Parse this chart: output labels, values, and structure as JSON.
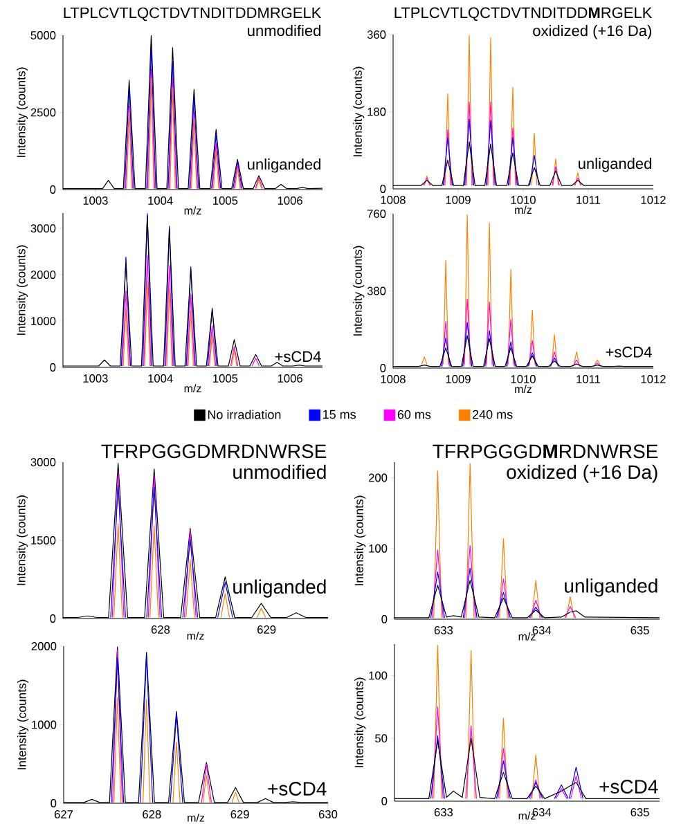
{
  "chart_data": [
    {
      "type": "line",
      "title": "LTPLCVTLQCTDVTNDITDDMRGELK",
      "subtitle": "unmodified",
      "xlabel": "m/z",
      "ylabel": "Intensity (counts)",
      "annotations": [
        "unliganded"
      ],
      "x": [
        1002.5,
        1003.11,
        1003.2,
        1003.29,
        1003.43,
        1003.52,
        1003.61,
        1003.77,
        1003.86,
        1003.95,
        1004.1,
        1004.19,
        1004.28,
        1004.43,
        1004.52,
        1004.61,
        1004.77,
        1004.86,
        1004.95,
        1005.1,
        1005.19,
        1005.28,
        1005.43,
        1005.52,
        1005.61,
        1005.77,
        1005.86,
        1005.95,
        1006.1,
        1006.19,
        1006.28,
        1006.5
      ],
      "series": [
        {
          "color": "#000000",
          "values": [
            30,
            30,
            300,
            30,
            30,
            3550,
            30,
            30,
            5000,
            30,
            30,
            4600,
            30,
            30,
            3250,
            30,
            30,
            1950,
            30,
            30,
            980,
            30,
            30,
            450,
            30,
            30,
            170,
            30,
            30,
            70,
            30,
            40
          ]
        },
        {
          "color": "#0000ff",
          "x": [
            1003.45,
            1003.52,
            1003.59,
            1003.69,
            1003.79,
            1003.86,
            1003.93,
            1004.02,
            1004.12,
            1004.19,
            1004.26,
            1004.35,
            1004.45,
            1004.52,
            1004.59,
            1004.69,
            1004.79,
            1004.86,
            1004.93,
            1005.02,
            1005.12,
            1005.19,
            1005.26
          ],
          "values": [
            30,
            3300,
            30,
            null,
            30,
            4600,
            30,
            null,
            30,
            4150,
            30,
            null,
            30,
            3000,
            30,
            null,
            30,
            1800,
            30,
            null,
            30,
            900,
            30
          ]
        },
        {
          "color": "#ff00ff",
          "x": [
            1003.465,
            1003.52,
            1003.575,
            1003.69,
            1003.805,
            1003.86,
            1003.915,
            1004.02,
            1004.135,
            1004.19,
            1004.245,
            1004.35,
            1004.465,
            1004.52,
            1004.575,
            1004.69,
            1004.805,
            1004.86,
            1004.915,
            1005.02,
            1005.135,
            1005.19,
            1005.245,
            1005.35,
            1005.465,
            1005.52,
            1005.575
          ],
          "values": [
            30,
            2700,
            30,
            null,
            30,
            3900,
            30,
            null,
            30,
            3600,
            30,
            null,
            30,
            2500,
            30,
            null,
            30,
            1500,
            30,
            null,
            30,
            800,
            30,
            null,
            30,
            380,
            30
          ]
        },
        {
          "color": "#ff8000",
          "x": [
            1003.48,
            1003.52,
            1003.56,
            1003.69,
            1003.82,
            1003.86,
            1003.9,
            1004.02,
            1004.15,
            1004.19,
            1004.23,
            1004.35,
            1004.48,
            1004.52,
            1004.56,
            1004.69,
            1004.82,
            1004.86,
            1004.9,
            1005.02,
            1005.15,
            1005.19,
            1005.23,
            1005.35,
            1005.48,
            1005.52,
            1005.56
          ],
          "values": [
            30,
            2500,
            30,
            null,
            30,
            3600,
            30,
            null,
            30,
            3300,
            30,
            null,
            30,
            2300,
            30,
            null,
            30,
            1300,
            30,
            null,
            30,
            700,
            30,
            null,
            30,
            330,
            30
          ]
        }
      ],
      "xlim": [
        1002.5,
        1006.5
      ],
      "ylim": [
        0,
        5000
      ],
      "xticks": [
        1003,
        1004,
        1005,
        1006
      ],
      "yticks": [
        0,
        2500,
        5000
      ]
    },
    {
      "type": "line",
      "title": "LTPLCVTLQCTDVTNDITDD**M**RGELK",
      "subtitle": "oxidized (+16 Da)",
      "xlabel": "m/z",
      "ylabel": "Intensity (counts)",
      "annotations": [
        "unliganded"
      ],
      "x": [
        1008,
        1008.43,
        1008.52,
        1008.61,
        1008.75,
        1008.84,
        1008.93,
        1009.08,
        1009.17,
        1009.26,
        1009.41,
        1009.5,
        1009.59,
        1009.75,
        1009.84,
        1009.93,
        1010.08,
        1010.17,
        1010.26,
        1010.41,
        1010.5,
        1010.59,
        1010.75,
        1010.84,
        1010.93,
        1012
      ],
      "series": [
        {
          "color": "#000000",
          "values": [
            8,
            8,
            20,
            8,
            8,
            67,
            8,
            8,
            110,
            8,
            8,
            105,
            8,
            8,
            84,
            8,
            8,
            50,
            8,
            8,
            42,
            8,
            8,
            20,
            8,
            8
          ]
        },
        {
          "color": "#0000ff",
          "x": [
            1008.77,
            1008.84,
            1008.91,
            1009.0,
            1009.1,
            1009.17,
            1009.24,
            1009.33,
            1009.43,
            1009.5,
            1009.57,
            1009.67,
            1009.77,
            1009.84,
            1009.91,
            1010.0,
            1010.1,
            1010.17,
            1010.24
          ],
          "values": [
            8,
            120,
            8,
            null,
            8,
            163,
            8,
            null,
            8,
            160,
            8,
            null,
            8,
            120,
            8,
            null,
            8,
            78,
            8
          ]
        },
        {
          "color": "#ff00ff",
          "x": [
            1008.465,
            1008.52,
            1008.575,
            1008.68,
            1008.785,
            1008.84,
            1008.895,
            1009.0,
            1009.115,
            1009.17,
            1009.225,
            1009.33,
            1009.445,
            1009.5,
            1009.555,
            1009.67,
            1009.785,
            1009.84,
            1009.895,
            1010.0,
            1010.445,
            1010.5,
            1010.555,
            1010.67,
            1010.785,
            1010.84,
            1010.895
          ],
          "values": [
            8,
            25,
            8,
            null,
            8,
            138,
            8,
            null,
            8,
            203,
            8,
            null,
            8,
            203,
            8,
            null,
            8,
            142,
            8,
            null,
            8,
            52,
            8,
            null,
            8,
            25,
            8
          ]
        },
        {
          "color": "#ff8000",
          "x": [
            1008.48,
            1008.52,
            1008.56,
            1008.68,
            1008.8,
            1008.84,
            1008.88,
            1009.0,
            1009.13,
            1009.17,
            1009.21,
            1009.33,
            1009.46,
            1009.5,
            1009.54,
            1009.67,
            1009.8,
            1009.84,
            1009.88,
            1010.0,
            1010.13,
            1010.17,
            1010.21,
            1010.33,
            1010.46,
            1010.5,
            1010.54,
            1010.67,
            1010.8,
            1010.84,
            1010.88
          ],
          "values": [
            8,
            30,
            8,
            null,
            8,
            222,
            8,
            null,
            8,
            358,
            8,
            null,
            8,
            352,
            8,
            null,
            8,
            237,
            8,
            null,
            8,
            130,
            8,
            null,
            8,
            70,
            8,
            null,
            8,
            38,
            8
          ]
        }
      ],
      "xlim": [
        1008,
        1012
      ],
      "ylim": [
        0,
        360
      ],
      "xticks": [
        1008,
        1009,
        1010,
        1011,
        1012
      ],
      "yticks": [
        0,
        180,
        360
      ]
    },
    {
      "type": "line",
      "xlabel": "m/z",
      "ylabel": "Intensity (counts)",
      "annotations": [
        "+sCD4"
      ],
      "legend": "bottom",
      "x": [
        1002.5,
        1003.05,
        1003.14,
        1003.23,
        1003.38,
        1003.47,
        1003.56,
        1003.71,
        1003.8,
        1003.89,
        1004.05,
        1004.14,
        1004.23,
        1004.38,
        1004.47,
        1004.56,
        1004.71,
        1004.8,
        1004.89,
        1005.05,
        1005.14,
        1005.23,
        1005.38,
        1005.47,
        1005.56,
        1005.71,
        1005.8,
        1005.89,
        1006.05,
        1006.14,
        1006.23,
        1006.5
      ],
      "series": [
        {
          "name": "No irradiation",
          "color": "#000000",
          "values": [
            30,
            30,
            160,
            30,
            30,
            2250,
            30,
            30,
            3280,
            30,
            30,
            3000,
            30,
            30,
            2120,
            30,
            30,
            1250,
            30,
            30,
            600,
            30,
            30,
            280,
            30,
            30,
            110,
            30,
            30,
            50,
            30,
            30
          ]
        },
        {
          "name": "15 ms",
          "color": "#0000ff",
          "x": [
            1003.4,
            1003.47,
            1003.54,
            1003.64,
            1003.73,
            1003.8,
            1003.87,
            1003.97,
            1004.07,
            1004.14,
            1004.21,
            1004.31,
            1004.4,
            1004.47,
            1004.54,
            1004.64,
            1004.73,
            1004.8,
            1004.87
          ],
          "values": [
            30,
            2380,
            30,
            null,
            30,
            3320,
            30,
            null,
            30,
            3050,
            30,
            null,
            30,
            2170,
            30,
            null,
            30,
            1280,
            30
          ]
        },
        {
          "name": "60 ms",
          "color": "#ff00ff",
          "x": [
            1003.415,
            1003.47,
            1003.525,
            1003.64,
            1003.745,
            1003.8,
            1003.855,
            1003.97,
            1004.085,
            1004.14,
            1004.195,
            1004.31,
            1004.415,
            1004.47,
            1004.525,
            1004.64,
            1004.745,
            1004.8,
            1004.855,
            1004.97,
            1005.085,
            1005.14,
            1005.195,
            1005.31,
            1005.415,
            1005.47,
            1005.525
          ],
          "values": [
            30,
            1650,
            30,
            null,
            30,
            2420,
            30,
            null,
            30,
            2200,
            30,
            null,
            30,
            1580,
            30,
            null,
            30,
            900,
            30,
            null,
            30,
            450,
            30,
            null,
            30,
            200,
            30
          ]
        },
        {
          "name": "240 ms",
          "color": "#ff8000",
          "x": [
            1003.43,
            1003.47,
            1003.51,
            1003.64,
            1003.76,
            1003.8,
            1003.84,
            1003.97,
            1004.1,
            1004.14,
            1004.18,
            1004.31,
            1004.43,
            1004.47,
            1004.51,
            1004.64,
            1004.76,
            1004.8,
            1004.84,
            1004.97,
            1005.1,
            1005.14,
            1005.18
          ],
          "values": [
            30,
            1280,
            30,
            null,
            30,
            1860,
            30,
            null,
            30,
            1700,
            30,
            null,
            30,
            1220,
            30,
            null,
            30,
            700,
            30,
            null,
            30,
            370,
            30
          ]
        }
      ],
      "xlim": [
        1002.5,
        1006.5
      ],
      "ylim": [
        0,
        3330
      ],
      "xticks": [
        1003,
        1004,
        1005,
        1006
      ],
      "yticks": [
        0,
        1000,
        2000,
        3000
      ]
    },
    {
      "type": "line",
      "xlabel": "m/z",
      "ylabel": "Intensity (counts)",
      "annotations": [
        "+sCD4"
      ],
      "x": [
        1008,
        1008.39,
        1008.48,
        1008.57,
        1008.72,
        1008.81,
        1008.9,
        1009.05,
        1009.14,
        1009.23,
        1009.39,
        1009.48,
        1009.57,
        1009.72,
        1009.81,
        1009.9,
        1010.05,
        1010.14,
        1010.23,
        1010.39,
        1010.48,
        1010.57,
        1010.73,
        1010.82,
        1010.91,
        1011.05,
        1011.14,
        1011.23,
        1011.38,
        1011.47,
        1011.56,
        1012
      ],
      "series": [
        {
          "color": "#000000",
          "values": [
            8,
            8,
            15,
            8,
            8,
            100,
            8,
            8,
            160,
            8,
            8,
            145,
            8,
            8,
            100,
            8,
            8,
            60,
            8,
            8,
            35,
            8,
            8,
            20,
            8,
            8,
            15,
            8,
            8,
            10,
            8,
            8
          ]
        },
        {
          "color": "#0000ff",
          "x": [
            1008.74,
            1008.81,
            1008.88,
            1008.98,
            1009.07,
            1009.14,
            1009.21,
            1009.31,
            1009.41,
            1009.48,
            1009.55,
            1009.65,
            1009.74,
            1009.81,
            1009.88,
            1009.98,
            1010.07,
            1010.14,
            1010.21,
            1010.31,
            1010.41,
            1010.48,
            1010.55
          ],
          "values": [
            8,
            150,
            8,
            null,
            8,
            225,
            8,
            null,
            8,
            185,
            8,
            null,
            8,
            130,
            8,
            null,
            8,
            75,
            8,
            null,
            8,
            50,
            8
          ]
        },
        {
          "color": "#ff00ff",
          "x": [
            1008.755,
            1008.81,
            1008.865,
            1008.98,
            1009.085,
            1009.14,
            1009.195,
            1009.31,
            1009.425,
            1009.48,
            1009.535,
            1009.65,
            1009.755,
            1009.81,
            1009.865,
            1009.98,
            1010.085,
            1010.14,
            1010.195,
            1010.31,
            1010.425,
            1010.48,
            1010.535,
            1010.65,
            1010.765,
            1010.82,
            1010.875,
            1010.98,
            1011.085,
            1011.14,
            1011.195
          ],
          "values": [
            8,
            230,
            8,
            null,
            8,
            340,
            8,
            null,
            8,
            325,
            8,
            null,
            8,
            240,
            8,
            null,
            8,
            135,
            8,
            null,
            8,
            80,
            8,
            null,
            8,
            40,
            8,
            null,
            8,
            25,
            8
          ]
        },
        {
          "color": "#ff8000",
          "x": [
            1008.44,
            1008.48,
            1008.52,
            1008.645,
            1008.77,
            1008.81,
            1008.85,
            1008.975,
            1009.1,
            1009.14,
            1009.18,
            1009.31,
            1009.44,
            1009.48,
            1009.52,
            1009.645,
            1009.77,
            1009.81,
            1009.85,
            1009.975,
            1010.1,
            1010.14,
            1010.18,
            1010.31,
            1010.44,
            1010.48,
            1010.52,
            1010.65,
            1010.78,
            1010.82,
            1010.86,
            1010.98,
            1011.1,
            1011.14,
            1011.18
          ],
          "values": [
            18,
            55,
            18,
            null,
            18,
            530,
            18,
            null,
            18,
            755,
            18,
            null,
            18,
            715,
            18,
            null,
            18,
            485,
            18,
            null,
            18,
            285,
            18,
            null,
            18,
            165,
            18,
            null,
            18,
            80,
            18,
            null,
            18,
            40,
            18
          ]
        }
      ],
      "xlim": [
        1008,
        1012
      ],
      "ylim": [
        0,
        760
      ],
      "xticks": [
        1008,
        1009,
        1010,
        1011,
        1012
      ],
      "yticks": [
        0,
        380,
        760
      ]
    },
    {
      "type": "line",
      "title": "TFRPGGGDMRDNWRSE",
      "subtitle": "unmodified",
      "xlabel": "m/z",
      "ylabel": "Intensity (counts)",
      "annotations": [
        "unliganded"
      ],
      "x": [
        627.08,
        627.22,
        627.31,
        627.4,
        627.51,
        627.6,
        627.69,
        627.85,
        627.94,
        628.03,
        628.19,
        628.28,
        628.37,
        628.52,
        628.61,
        628.7,
        628.86,
        628.95,
        629.04,
        629.19,
        629.28,
        629.37,
        629.58
      ],
      "series": [
        {
          "color": "#000000",
          "values": [
            20,
            20,
            50,
            20,
            20,
            2980,
            20,
            20,
            2870,
            20,
            20,
            1730,
            20,
            20,
            800,
            20,
            20,
            290,
            20,
            20,
            110,
            20,
            20
          ]
        },
        {
          "color": "#0000ff",
          "x": [
            627.53,
            627.6,
            627.67,
            627.77,
            627.87,
            627.94,
            628.01,
            628.11,
            628.21,
            628.28,
            628.35,
            628.45,
            628.54,
            628.61,
            628.68
          ],
          "values": [
            20,
            2550,
            20,
            null,
            20,
            2520,
            20,
            null,
            20,
            1520,
            20,
            null,
            20,
            700,
            20
          ]
        },
        {
          "color": "#ff00ff",
          "x": [
            627.545,
            627.6,
            627.655,
            627.77,
            627.885,
            627.94,
            627.995,
            628.11,
            628.225,
            628.28,
            628.335
          ],
          "values": [
            20,
            2800,
            20,
            null,
            20,
            2750,
            20,
            null,
            20,
            1700,
            20
          ]
        },
        {
          "color": "#ff8000",
          "x": [
            627.56,
            627.6,
            627.64,
            627.77,
            627.9,
            627.94,
            627.98,
            628.11,
            628.24,
            628.28,
            628.32,
            628.45,
            628.57,
            628.61,
            628.65,
            628.78,
            628.91,
            628.95,
            628.99
          ],
          "values": [
            20,
            1820,
            20,
            null,
            20,
            1780,
            20,
            null,
            20,
            1130,
            20,
            null,
            20,
            480,
            20,
            null,
            20,
            200,
            20
          ]
        }
      ],
      "xlim": [
        627.08,
        629.58
      ],
      "ylim": [
        0,
        3000
      ],
      "xticks": [
        628,
        629
      ],
      "yticks": [
        0,
        1500,
        3000
      ]
    },
    {
      "type": "line",
      "title": "TFRPGGGD**M**RDNWRSE",
      "subtitle": "oxidized (+16 Da)",
      "xlabel": "m/z",
      "ylabel": "Intensity (counts)",
      "annotations": [
        "unliganded"
      ],
      "x": [
        632.5,
        632.85,
        632.94,
        633.03,
        633.1,
        633.18,
        633.27,
        633.36,
        633.52,
        633.61,
        633.7,
        633.85,
        633.94,
        634.03,
        634.2,
        634.29,
        634.35,
        634.44,
        635.2
      ],
      "series": [
        {
          "color": "#000000",
          "values": [
            2,
            2,
            48,
            3,
            5,
            3,
            55,
            3,
            2,
            30,
            2,
            2,
            13,
            2,
            3,
            10,
            12,
            3,
            2
          ]
        },
        {
          "color": "#0000ff",
          "x": [
            632.87,
            632.94,
            633.01,
            633.1,
            633.2,
            633.27,
            633.34,
            633.44,
            633.54,
            633.61,
            633.68,
            633.78,
            633.87,
            633.94,
            634.01
          ],
          "values": [
            2,
            67,
            2,
            null,
            2,
            72,
            2,
            null,
            2,
            38,
            2,
            null,
            2,
            17,
            2
          ]
        },
        {
          "color": "#ff00ff",
          "x": [
            632.885,
            632.94,
            632.995,
            633.1,
            633.215,
            633.27,
            633.325,
            633.44,
            633.555,
            633.61,
            633.665,
            633.78,
            633.885,
            633.94,
            633.995,
            634.1,
            634.235,
            634.29,
            634.345
          ],
          "values": [
            2,
            98,
            2,
            null,
            2,
            104,
            2,
            null,
            2,
            57,
            2,
            null,
            2,
            27,
            2,
            null,
            2,
            18,
            2
          ]
        },
        {
          "color": "#ff8000",
          "x": [
            632.9,
            632.94,
            632.98,
            633.1,
            633.23,
            633.27,
            633.31,
            633.44,
            633.57,
            633.61,
            633.65,
            633.78,
            633.9,
            633.94,
            633.98,
            634.1,
            634.25,
            634.29,
            634.33
          ],
          "values": [
            2,
            210,
            2,
            null,
            2,
            220,
            2,
            null,
            2,
            114,
            2,
            null,
            2,
            55,
            2,
            null,
            2,
            32,
            2
          ]
        }
      ],
      "xlim": [
        632.5,
        635.2
      ],
      "ylim": [
        0,
        222
      ],
      "xticks": [
        633,
        634,
        635
      ],
      "yticks": [
        0,
        100,
        200
      ]
    },
    {
      "type": "line",
      "xlabel": "m/z",
      "ylabel": "Intensity (counts)",
      "annotations": [
        "+sCD4"
      ],
      "x": [
        627,
        627.23,
        627.32,
        627.41,
        627.52,
        627.61,
        627.7,
        627.85,
        627.94,
        628.03,
        628.19,
        628.28,
        628.37,
        628.53,
        628.62,
        628.71,
        628.86,
        628.95,
        629.04,
        629.2,
        629.29,
        629.38,
        629.51,
        629.6,
        629.69,
        630
      ],
      "series": [
        {
          "color": "#000000",
          "values": [
            10,
            10,
            50,
            10,
            10,
            1990,
            10,
            10,
            1920,
            10,
            10,
            1170,
            10,
            10,
            520,
            10,
            10,
            200,
            10,
            10,
            60,
            10,
            10,
            20,
            10,
            10
          ]
        },
        {
          "color": "#0000ff",
          "x": [
            627.54,
            627.61,
            627.68,
            627.78,
            627.87,
            627.94,
            628.01,
            628.11,
            628.21,
            628.28,
            628.35
          ],
          "values": [
            10,
            1850,
            10,
            null,
            10,
            1880,
            10,
            null,
            10,
            1130,
            10
          ]
        },
        {
          "color": "#ff00ff",
          "x": [
            627.555,
            627.61,
            627.665,
            628.1,
            628.565,
            628.62,
            628.675
          ],
          "values": [
            10,
            1950,
            10,
            null,
            10,
            500,
            10
          ]
        },
        {
          "color": "#ff8000",
          "x": [
            627.57,
            627.61,
            627.65,
            627.78,
            627.9,
            627.94,
            627.98,
            628.11,
            628.24,
            628.28,
            628.32,
            628.45,
            628.58,
            628.62,
            628.66,
            628.79,
            628.91,
            628.95,
            628.99
          ],
          "values": [
            10,
            1340,
            10,
            null,
            10,
            1320,
            10,
            null,
            10,
            780,
            10,
            null,
            10,
            350,
            10,
            null,
            10,
            140,
            10
          ]
        }
      ],
      "xlim": [
        627,
        630
      ],
      "ylim": [
        0,
        2000
      ],
      "xticks": [
        627,
        628,
        629,
        630
      ],
      "yticks": [
        0,
        1000,
        2000
      ]
    },
    {
      "type": "line",
      "xlabel": "m/z",
      "ylabel": "Intensity (counts)",
      "annotations": [
        "+sCD4"
      ],
      "x": [
        632.5,
        632.85,
        632.94,
        633.03,
        633.1,
        633.19,
        633.28,
        633.37,
        633.52,
        633.61,
        633.7,
        633.85,
        633.94,
        634.03,
        634.2,
        634.35,
        634.45,
        635.2
      ],
      "series": [
        {
          "color": "#000000",
          "values": [
            2,
            2,
            48,
            3,
            8,
            3,
            50,
            3,
            2,
            23,
            2,
            2,
            12,
            2,
            8,
            15,
            2,
            2
          ]
        },
        {
          "color": "#0000ff",
          "x": [
            632.87,
            632.94,
            633.01,
            633.3,
            633.54,
            633.61,
            633.68,
            633.8,
            633.87,
            633.94,
            634.01,
            634.07,
            634.13,
            634.2,
            634.27,
            634.275,
            634.28,
            634.35,
            634.42
          ],
          "values": [
            2,
            52,
            2,
            null,
            2,
            32,
            2,
            null,
            2,
            15,
            2,
            null,
            2,
            13,
            2,
            null,
            2,
            27,
            2
          ]
        },
        {
          "color": "#ff00ff",
          "x": [
            632.885,
            632.94,
            632.995,
            633.1,
            633.225,
            633.28,
            633.335,
            633.45,
            633.555,
            633.61,
            633.665,
            633.78,
            633.885,
            633.94,
            633.995,
            634.07,
            634.145,
            634.2,
            634.255,
            634.27,
            634.295,
            634.35,
            634.405
          ],
          "values": [
            2,
            75,
            2,
            null,
            2,
            60,
            2,
            null,
            2,
            42,
            2,
            null,
            2,
            17,
            2,
            null,
            2,
            10,
            2,
            null,
            2,
            20,
            2
          ]
        },
        {
          "color": "#ff8000",
          "x": [
            632.9,
            632.94,
            632.98,
            633.1,
            633.24,
            633.28,
            633.32,
            633.45,
            633.57,
            633.61,
            633.65,
            633.78,
            633.9,
            633.94,
            633.98
          ],
          "values": [
            2,
            124,
            2,
            null,
            2,
            120,
            2,
            null,
            2,
            66,
            2,
            null,
            2,
            37,
            2
          ]
        }
      ],
      "xlim": [
        632.5,
        635.2
      ],
      "ylim": [
        0,
        125
      ],
      "xticks": [
        633,
        634,
        635
      ],
      "yticks": [
        0,
        50,
        100
      ]
    }
  ]
}
